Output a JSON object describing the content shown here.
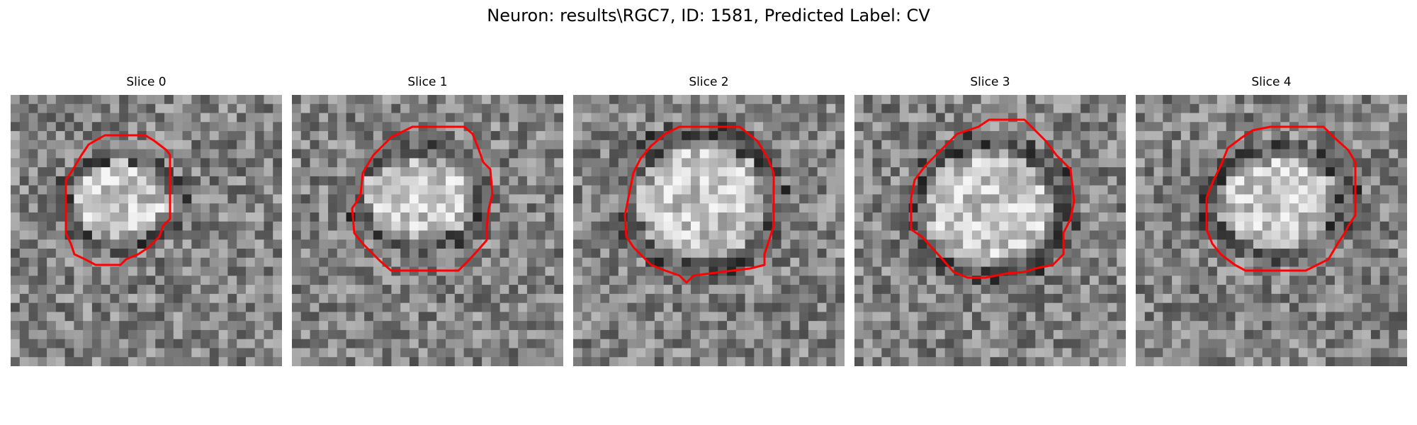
{
  "title": "Neuron: results\\RGC7, ID: 1581, Predicted Label: CV",
  "panels": [
    {
      "title": "Slice 0",
      "contour_color": "#ff0000"
    },
    {
      "title": "Slice 1",
      "contour_color": "#ff0000"
    },
    {
      "title": "Slice 2",
      "contour_color": "#ff0000"
    },
    {
      "title": "Slice 3",
      "contour_color": "#ff0000"
    },
    {
      "title": "Slice 4",
      "contour_color": "#ff0000"
    }
  ]
}
